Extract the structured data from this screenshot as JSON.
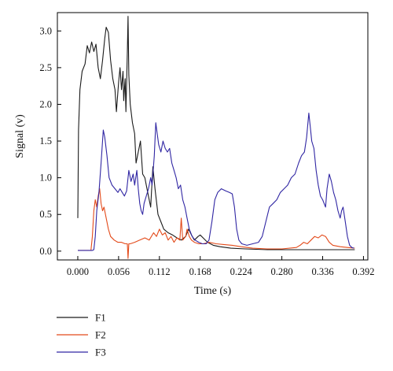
{
  "chart_data": {
    "type": "line",
    "title": "",
    "xlabel": "Time (s)",
    "ylabel": "Signal (v)",
    "xlim": [
      -0.028,
      0.398
    ],
    "ylim": [
      -0.12,
      3.25
    ],
    "xticks": [
      0.0,
      0.056,
      0.112,
      0.168,
      0.224,
      0.28,
      0.336,
      0.392
    ],
    "xtick_labels": [
      "0.000",
      "0.056",
      "0.112",
      "0.168",
      "0.224",
      "0.280",
      "0.336",
      "0.392"
    ],
    "yticks": [
      0.0,
      0.5,
      1.0,
      1.5,
      2.0,
      2.5,
      3.0
    ],
    "ytick_labels": [
      "0.0",
      "0.5",
      "1.0",
      "1.5",
      "2.0",
      "2.5",
      "3.0"
    ],
    "grid": false,
    "legend_position": "below the plot, left",
    "series": [
      {
        "name": "F1",
        "color": "#1a1a1a",
        "points": [
          [
            0.0,
            0.45
          ],
          [
            0.001,
            1.65
          ],
          [
            0.003,
            2.2
          ],
          [
            0.006,
            2.45
          ],
          [
            0.01,
            2.55
          ],
          [
            0.013,
            2.8
          ],
          [
            0.016,
            2.7
          ],
          [
            0.019,
            2.85
          ],
          [
            0.022,
            2.72
          ],
          [
            0.025,
            2.82
          ],
          [
            0.028,
            2.5
          ],
          [
            0.031,
            2.35
          ],
          [
            0.034,
            2.6
          ],
          [
            0.037,
            2.9
          ],
          [
            0.039,
            3.05
          ],
          [
            0.042,
            2.98
          ],
          [
            0.045,
            2.6
          ],
          [
            0.048,
            2.35
          ],
          [
            0.051,
            2.2
          ],
          [
            0.053,
            1.9
          ],
          [
            0.056,
            2.3
          ],
          [
            0.058,
            2.5
          ],
          [
            0.06,
            2.2
          ],
          [
            0.062,
            2.45
          ],
          [
            0.063,
            2.05
          ],
          [
            0.065,
            2.35
          ],
          [
            0.066,
            1.9
          ],
          [
            0.068,
            2.7
          ],
          [
            0.069,
            3.2
          ],
          [
            0.07,
            2.4
          ],
          [
            0.072,
            2.0
          ],
          [
            0.075,
            1.75
          ],
          [
            0.078,
            1.6
          ],
          [
            0.08,
            1.2
          ],
          [
            0.083,
            1.35
          ],
          [
            0.086,
            1.5
          ],
          [
            0.089,
            1.05
          ],
          [
            0.092,
            1.0
          ],
          [
            0.095,
            0.85
          ],
          [
            0.098,
            0.7
          ],
          [
            0.1,
            0.6
          ],
          [
            0.103,
            1.15
          ],
          [
            0.106,
            0.85
          ],
          [
            0.11,
            0.5
          ],
          [
            0.114,
            0.4
          ],
          [
            0.118,
            0.3
          ],
          [
            0.124,
            0.25
          ],
          [
            0.13,
            0.22
          ],
          [
            0.136,
            0.18
          ],
          [
            0.142,
            0.15
          ],
          [
            0.148,
            0.2
          ],
          [
            0.152,
            0.3
          ],
          [
            0.156,
            0.22
          ],
          [
            0.16,
            0.15
          ],
          [
            0.165,
            0.2
          ],
          [
            0.168,
            0.22
          ],
          [
            0.172,
            0.18
          ],
          [
            0.178,
            0.12
          ],
          [
            0.186,
            0.08
          ],
          [
            0.195,
            0.06
          ],
          [
            0.21,
            0.04
          ],
          [
            0.23,
            0.03
          ],
          [
            0.26,
            0.02
          ],
          [
            0.3,
            0.02
          ],
          [
            0.34,
            0.02
          ],
          [
            0.38,
            0.02
          ]
        ]
      },
      {
        "name": "F2",
        "color": "#e34a1a",
        "points": [
          [
            0.0,
            0.01
          ],
          [
            0.01,
            0.01
          ],
          [
            0.018,
            0.01
          ],
          [
            0.02,
            0.2
          ],
          [
            0.022,
            0.55
          ],
          [
            0.024,
            0.7
          ],
          [
            0.026,
            0.6
          ],
          [
            0.028,
            0.75
          ],
          [
            0.03,
            0.85
          ],
          [
            0.032,
            0.65
          ],
          [
            0.034,
            0.55
          ],
          [
            0.036,
            0.6
          ],
          [
            0.039,
            0.45
          ],
          [
            0.042,
            0.3
          ],
          [
            0.045,
            0.2
          ],
          [
            0.05,
            0.15
          ],
          [
            0.055,
            0.12
          ],
          [
            0.06,
            0.12
          ],
          [
            0.065,
            0.1
          ],
          [
            0.068,
            0.1
          ],
          [
            0.069,
            -0.1
          ],
          [
            0.07,
            0.1
          ],
          [
            0.072,
            0.1
          ],
          [
            0.078,
            0.12
          ],
          [
            0.085,
            0.15
          ],
          [
            0.092,
            0.18
          ],
          [
            0.098,
            0.15
          ],
          [
            0.104,
            0.25
          ],
          [
            0.108,
            0.2
          ],
          [
            0.112,
            0.3
          ],
          [
            0.116,
            0.22
          ],
          [
            0.12,
            0.25
          ],
          [
            0.124,
            0.15
          ],
          [
            0.128,
            0.2
          ],
          [
            0.132,
            0.12
          ],
          [
            0.136,
            0.18
          ],
          [
            0.14,
            0.15
          ],
          [
            0.142,
            0.45
          ],
          [
            0.144,
            0.15
          ],
          [
            0.148,
            0.2
          ],
          [
            0.15,
            0.3
          ],
          [
            0.153,
            0.2
          ],
          [
            0.156,
            0.15
          ],
          [
            0.16,
            0.12
          ],
          [
            0.166,
            0.1
          ],
          [
            0.172,
            0.1
          ],
          [
            0.18,
            0.12
          ],
          [
            0.19,
            0.1
          ],
          [
            0.2,
            0.09
          ],
          [
            0.212,
            0.08
          ],
          [
            0.224,
            0.06
          ],
          [
            0.24,
            0.04
          ],
          [
            0.26,
            0.03
          ],
          [
            0.28,
            0.03
          ],
          [
            0.3,
            0.05
          ],
          [
            0.305,
            0.08
          ],
          [
            0.31,
            0.12
          ],
          [
            0.315,
            0.1
          ],
          [
            0.32,
            0.15
          ],
          [
            0.325,
            0.2
          ],
          [
            0.33,
            0.18
          ],
          [
            0.335,
            0.22
          ],
          [
            0.34,
            0.2
          ],
          [
            0.345,
            0.12
          ],
          [
            0.35,
            0.08
          ],
          [
            0.36,
            0.06
          ],
          [
            0.37,
            0.05
          ],
          [
            0.38,
            0.04
          ]
        ]
      },
      {
        "name": "F3",
        "color": "#3026a3",
        "points": [
          [
            0.0,
            0.01
          ],
          [
            0.02,
            0.01
          ],
          [
            0.022,
            0.02
          ],
          [
            0.024,
            0.2
          ],
          [
            0.026,
            0.55
          ],
          [
            0.029,
            0.8
          ],
          [
            0.032,
            1.2
          ],
          [
            0.035,
            1.65
          ],
          [
            0.037,
            1.55
          ],
          [
            0.04,
            1.3
          ],
          [
            0.043,
            1.0
          ],
          [
            0.047,
            0.9
          ],
          [
            0.051,
            0.85
          ],
          [
            0.055,
            0.8
          ],
          [
            0.058,
            0.85
          ],
          [
            0.061,
            0.8
          ],
          [
            0.064,
            0.75
          ],
          [
            0.067,
            0.82
          ],
          [
            0.07,
            1.1
          ],
          [
            0.073,
            0.95
          ],
          [
            0.076,
            1.05
          ],
          [
            0.078,
            0.9
          ],
          [
            0.081,
            1.1
          ],
          [
            0.083,
            0.85
          ],
          [
            0.085,
            0.65
          ],
          [
            0.087,
            0.55
          ],
          [
            0.089,
            0.5
          ],
          [
            0.091,
            0.65
          ],
          [
            0.094,
            0.75
          ],
          [
            0.097,
            0.85
          ],
          [
            0.1,
            1.0
          ],
          [
            0.102,
            0.9
          ],
          [
            0.105,
            1.3
          ],
          [
            0.107,
            1.75
          ],
          [
            0.109,
            1.6
          ],
          [
            0.111,
            1.45
          ],
          [
            0.114,
            1.35
          ],
          [
            0.117,
            1.5
          ],
          [
            0.12,
            1.4
          ],
          [
            0.123,
            1.35
          ],
          [
            0.126,
            1.4
          ],
          [
            0.129,
            1.2
          ],
          [
            0.132,
            1.1
          ],
          [
            0.135,
            1.0
          ],
          [
            0.138,
            0.85
          ],
          [
            0.141,
            0.9
          ],
          [
            0.144,
            0.7
          ],
          [
            0.147,
            0.6
          ],
          [
            0.15,
            0.45
          ],
          [
            0.153,
            0.3
          ],
          [
            0.157,
            0.2
          ],
          [
            0.161,
            0.15
          ],
          [
            0.166,
            0.12
          ],
          [
            0.171,
            0.1
          ],
          [
            0.176,
            0.1
          ],
          [
            0.18,
            0.15
          ],
          [
            0.184,
            0.4
          ],
          [
            0.188,
            0.7
          ],
          [
            0.192,
            0.8
          ],
          [
            0.197,
            0.85
          ],
          [
            0.203,
            0.82
          ],
          [
            0.208,
            0.8
          ],
          [
            0.212,
            0.78
          ],
          [
            0.215,
            0.6
          ],
          [
            0.218,
            0.3
          ],
          [
            0.221,
            0.15
          ],
          [
            0.225,
            0.1
          ],
          [
            0.232,
            0.08
          ],
          [
            0.24,
            0.1
          ],
          [
            0.248,
            0.12
          ],
          [
            0.253,
            0.2
          ],
          [
            0.258,
            0.4
          ],
          [
            0.263,
            0.6
          ],
          [
            0.268,
            0.65
          ],
          [
            0.273,
            0.7
          ],
          [
            0.278,
            0.8
          ],
          [
            0.283,
            0.85
          ],
          [
            0.288,
            0.9
          ],
          [
            0.293,
            1.0
          ],
          [
            0.298,
            1.05
          ],
          [
            0.303,
            1.2
          ],
          [
            0.307,
            1.3
          ],
          [
            0.311,
            1.35
          ],
          [
            0.314,
            1.55
          ],
          [
            0.317,
            1.88
          ],
          [
            0.319,
            1.7
          ],
          [
            0.321,
            1.5
          ],
          [
            0.324,
            1.4
          ],
          [
            0.327,
            1.1
          ],
          [
            0.33,
            0.9
          ],
          [
            0.333,
            0.75
          ],
          [
            0.336,
            0.7
          ],
          [
            0.34,
            0.6
          ],
          [
            0.342,
            0.85
          ],
          [
            0.345,
            1.05
          ],
          [
            0.348,
            0.95
          ],
          [
            0.351,
            0.8
          ],
          [
            0.354,
            0.7
          ],
          [
            0.357,
            0.55
          ],
          [
            0.36,
            0.45
          ],
          [
            0.362,
            0.55
          ],
          [
            0.364,
            0.6
          ],
          [
            0.367,
            0.4
          ],
          [
            0.37,
            0.2
          ],
          [
            0.373,
            0.08
          ],
          [
            0.376,
            0.05
          ],
          [
            0.379,
            0.04
          ]
        ]
      }
    ]
  }
}
